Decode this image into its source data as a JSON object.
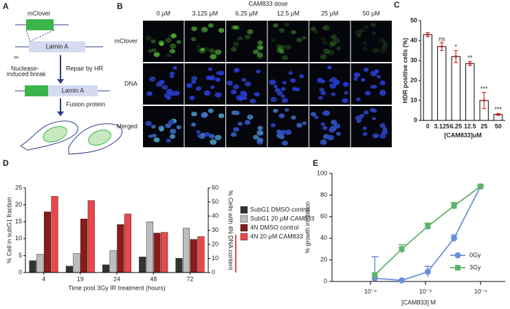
{
  "panel_a": {
    "label": "A",
    "tag": "mClover",
    "gene": "Lamin A",
    "break_label": [
      "Nuclease-",
      "induced break"
    ],
    "step_1": "Repair by HR",
    "gene_2": "Lamin A",
    "step_2": "Fusion protein"
  },
  "panel_b": {
    "label": "B",
    "title": "CAM833 dose",
    "columns": [
      "0 μM",
      "3.125 μM",
      "6.25 μM",
      "12.5 μM",
      "25 μM",
      "50 μM"
    ],
    "rows": [
      "mClover",
      "DNA",
      "Merged"
    ]
  },
  "chart_data": [
    {
      "type": "bar",
      "label": "C",
      "categories": [
        "0",
        "3.125",
        "6.25",
        "12.5",
        "25",
        "50"
      ],
      "values": [
        43,
        37,
        32,
        28.5,
        10,
        3
      ],
      "errors": [
        1,
        2,
        3,
        1,
        4,
        0.5
      ],
      "annotations": [
        null,
        "ns",
        "*",
        "**",
        "***",
        "***"
      ],
      "color": "#ffffff",
      "error_color": "#d62728",
      "ylim": [
        0,
        50
      ],
      "yticks": [
        0,
        10,
        20,
        30,
        40,
        50
      ],
      "y_label": "HDR positive cells (%)",
      "x_label": "[CAM833]uM"
    },
    {
      "type": "grouped_bar",
      "label": "D",
      "categories": [
        "4",
        "19",
        "24",
        "48",
        "72"
      ],
      "series": [
        {
          "name": "SubG1 DMSO control",
          "color": "#333333",
          "values": [
            3.5,
            1.9,
            2.3,
            4.6,
            4.2
          ]
        },
        {
          "name": "SubG1 20 μM CAM833",
          "color": "#bdbdbd",
          "values": [
            5.4,
            5.6,
            6.5,
            15,
            13.1
          ]
        },
        {
          "name": "4N DMSO control",
          "color": "#8b1a1a",
          "axis": "y2",
          "values": [
            43,
            38,
            34,
            28,
            23.5
          ]
        },
        {
          "name": "4N 20 μM CAM833",
          "color": "#e8474c",
          "axis": "y2",
          "values": [
            54,
            51,
            41.5,
            28.5,
            25.5
          ]
        }
      ],
      "ylim": [
        0,
        25
      ],
      "yticks": [
        0,
        5,
        10,
        15,
        20,
        25
      ],
      "y2lim": [
        0,
        60
      ],
      "y2ticks": [
        0,
        10,
        20,
        30,
        40,
        50,
        60
      ],
      "y_label": "% Cell in subG1 fraction",
      "y2_label": "% Cells with 4N DNA content",
      "x_label": "Time post 3Gy IR treatment (hours)"
    },
    {
      "type": "line",
      "label": "E",
      "xscale": "log",
      "legend": "lower right",
      "x": [
        1.2e-06,
        3.7e-06,
        1.1e-05,
        3.3e-05,
        0.0001
      ],
      "series": [
        {
          "name": "0Gy",
          "color": "#6a8fd8",
          "marker": "circle",
          "values": [
            3,
            1,
            9,
            40,
            88
          ],
          "errors": [
            20,
            0.5,
            5,
            3,
            1
          ]
        },
        {
          "name": "3Gy",
          "color": "#5db36b",
          "marker": "square",
          "values": [
            6,
            30,
            51,
            70,
            88
          ],
          "errors": [
            2,
            4,
            3,
            3,
            1
          ]
        }
      ],
      "xlim": [
        2e-07,
        0.00028
      ],
      "xticks": [
        {
          "value": 1e-06,
          "label": "10⁻⁶"
        },
        {
          "value": 1e-05,
          "label": "10⁻⁵"
        },
        {
          "value": 0.0001,
          "label": "10⁻⁴"
        }
      ],
      "ylim": [
        0,
        100
      ],
      "yticks": [
        0,
        20,
        40,
        60,
        80,
        100
      ],
      "y_label": "% growth inhibition",
      "x_label": "[CAM833] M"
    }
  ]
}
